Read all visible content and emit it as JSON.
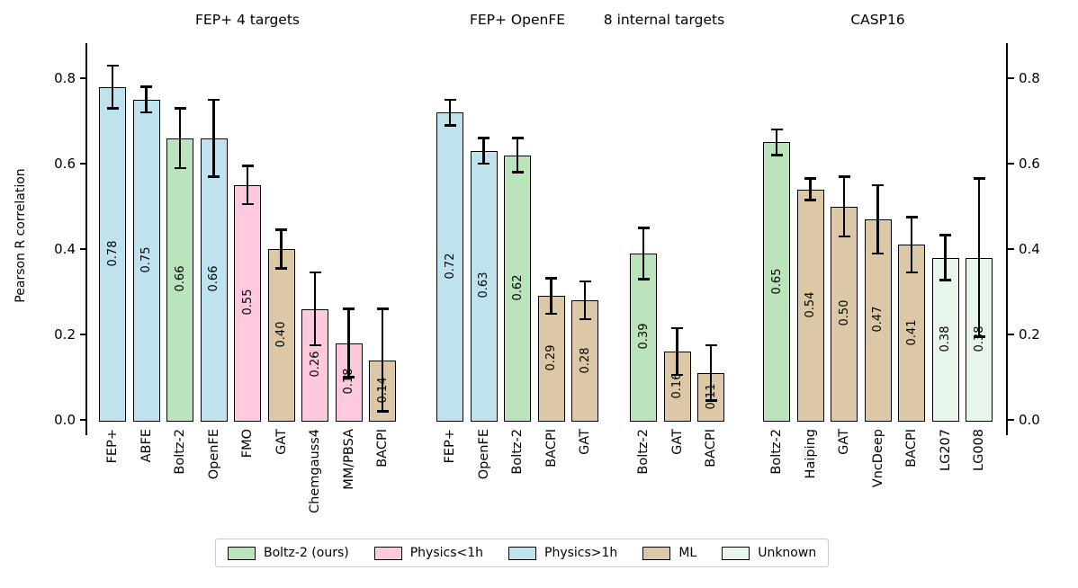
{
  "chart_data": {
    "type": "bar",
    "ylabel": "Pearson R correlation",
    "ylim": [
      0,
      0.88
    ],
    "yticks": [
      0.0,
      0.2,
      0.4,
      0.6,
      0.8
    ],
    "grid": false,
    "legend_position": "bottom-center",
    "colors": {
      "boltz2": "#bce4bc",
      "physics_lt_1h": "#fec9de",
      "physics_gt_1h": "#bfe2ef",
      "ml": "#dcc8a6",
      "unknown": "#e8f5ea",
      "bar_edge": "#000000",
      "error_bar": "#000000",
      "legend_border": "#cbcbcb"
    },
    "groups": [
      {
        "title": "FEP+ 4 targets",
        "bars": [
          {
            "label": "FEP+",
            "value": 0.78,
            "display": "0.78",
            "err": 0.05,
            "category": "physics_gt_1h"
          },
          {
            "label": "ABFE",
            "value": 0.75,
            "display": "0.75",
            "err": 0.03,
            "category": "physics_gt_1h"
          },
          {
            "label": "Boltz-2",
            "value": 0.66,
            "display": "0.66",
            "err": 0.07,
            "category": "boltz2"
          },
          {
            "label": "OpenFE",
            "value": 0.66,
            "display": "0.66",
            "err": 0.09,
            "category": "physics_gt_1h"
          },
          {
            "label": "FMO",
            "value": 0.55,
            "display": "0.55",
            "err": 0.045,
            "category": "physics_lt_1h"
          },
          {
            "label": "GAT",
            "value": 0.4,
            "display": "0.40",
            "err": 0.045,
            "category": "ml"
          },
          {
            "label": "Chemgauss4",
            "value": 0.26,
            "display": "0.26",
            "err": 0.085,
            "category": "physics_lt_1h"
          },
          {
            "label": "MM/PBSA",
            "value": 0.18,
            "display": "0.18",
            "err": 0.08,
            "category": "physics_lt_1h"
          },
          {
            "label": "BACPI",
            "value": 0.14,
            "display": "0.14",
            "err": 0.12,
            "category": "ml"
          }
        ]
      },
      {
        "title": "FEP+ OpenFE",
        "bars": [
          {
            "label": "FEP+",
            "value": 0.72,
            "display": "0.72",
            "err": 0.03,
            "category": "physics_gt_1h"
          },
          {
            "label": "OpenFE",
            "value": 0.63,
            "display": "0.63",
            "err": 0.03,
            "category": "physics_gt_1h"
          },
          {
            "label": "Boltz-2",
            "value": 0.62,
            "display": "0.62",
            "err": 0.04,
            "category": "boltz2"
          },
          {
            "label": "BACPI",
            "value": 0.29,
            "display": "0.29",
            "err": 0.042,
            "category": "ml"
          },
          {
            "label": "GAT",
            "value": 0.28,
            "display": "0.28",
            "err": 0.044,
            "category": "ml"
          }
        ]
      },
      {
        "title": "8 internal targets",
        "bars": [
          {
            "label": "Boltz-2",
            "value": 0.39,
            "display": "0.39",
            "err": 0.06,
            "category": "boltz2"
          },
          {
            "label": "GAT",
            "value": 0.16,
            "display": "0.16",
            "err": 0.055,
            "category": "ml"
          },
          {
            "label": "BACPI",
            "value": 0.11,
            "display": "0.11",
            "err": 0.065,
            "category": "ml"
          }
        ]
      },
      {
        "title": "CASP16",
        "bars": [
          {
            "label": "Boltz-2",
            "value": 0.65,
            "display": "0.65",
            "err": 0.03,
            "category": "boltz2"
          },
          {
            "label": "Haiping",
            "value": 0.54,
            "display": "0.54",
            "err": 0.025,
            "category": "ml"
          },
          {
            "label": "GAT",
            "value": 0.5,
            "display": "0.50",
            "err": 0.07,
            "category": "ml"
          },
          {
            "label": "VncDeep",
            "value": 0.47,
            "display": "0.47",
            "err": 0.08,
            "category": "ml"
          },
          {
            "label": "BACPI",
            "value": 0.41,
            "display": "0.41",
            "err": 0.065,
            "category": "ml"
          },
          {
            "label": "LG207",
            "value": 0.38,
            "display": "0.38",
            "err": 0.053,
            "category": "unknown"
          },
          {
            "label": "LG008",
            "value": 0.38,
            "display": "0.38",
            "err": 0.185,
            "category": "unknown"
          }
        ]
      }
    ],
    "legend": [
      {
        "label": "Boltz-2 (ours)",
        "category": "boltz2"
      },
      {
        "label": "Physics<1h",
        "category": "physics_lt_1h"
      },
      {
        "label": "Physics>1h",
        "category": "physics_gt_1h"
      },
      {
        "label": "ML",
        "category": "ml"
      },
      {
        "label": "Unknown",
        "category": "unknown"
      }
    ]
  }
}
